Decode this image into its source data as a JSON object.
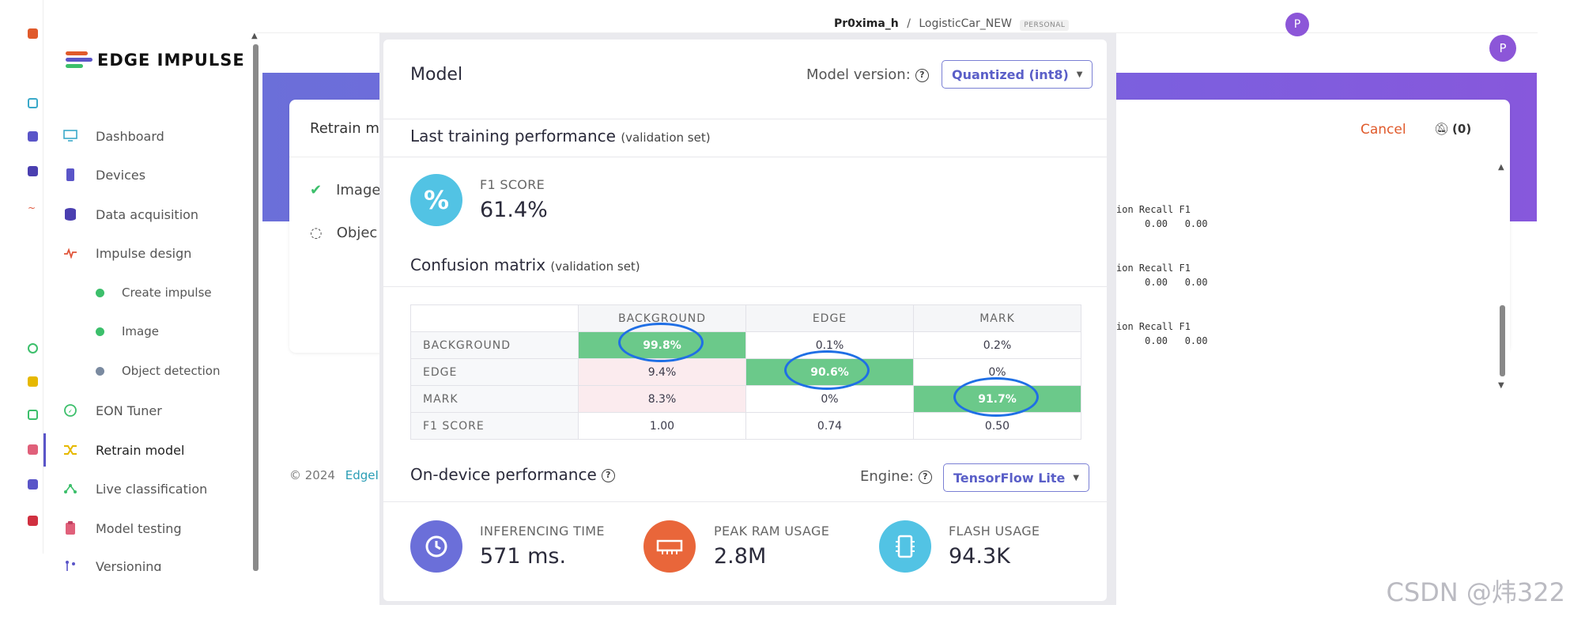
{
  "topbar": {
    "project_owner": "Pr0xima_h",
    "separator": "/",
    "project_name": "LogisticCar_NEW",
    "badge": "PERSONAL",
    "avatar_small": "P",
    "avatar_big": "P"
  },
  "sidebar": {
    "logo_text": "EDGE IMPULSE",
    "items": [
      {
        "label": "Dashboard",
        "icon": "monitor-icon",
        "color": "#3aa9c9"
      },
      {
        "label": "Devices",
        "icon": "chip-icon",
        "color": "#5a55c8"
      },
      {
        "label": "Data acquisition",
        "icon": "database-icon",
        "color": "#4a3fb0"
      },
      {
        "label": "Impulse design",
        "icon": "pulse-icon",
        "color": "#e0553a"
      },
      {
        "label": "Create impulse",
        "icon": "dot-icon",
        "color": "#3cbf6b"
      },
      {
        "label": "Image",
        "icon": "dot-icon",
        "color": "#3cbf6b"
      },
      {
        "label": "Object detection",
        "icon": "dot-icon",
        "color": "#7a8aa0"
      },
      {
        "label": "EON Tuner",
        "icon": "compass-icon",
        "color": "#3cbf6b"
      },
      {
        "label": "Retrain model",
        "icon": "shuffle-icon",
        "color": "#e6b800"
      },
      {
        "label": "Live classification",
        "icon": "network-icon",
        "color": "#3cbf6b"
      },
      {
        "label": "Model testing",
        "icon": "clipboard-icon",
        "color": "#e0607a"
      },
      {
        "label": "Versioning",
        "icon": "branch-icon",
        "color": "#5a55c8"
      }
    ]
  },
  "background_card": {
    "title_fragment": "Retrain m",
    "steps": [
      {
        "label": "Image",
        "state": "done"
      },
      {
        "label": "Objec",
        "state": "loading"
      }
    ],
    "cancel_label": "Cancel",
    "notifications_label": "(0)"
  },
  "console_lines": [
    "ion Recall F1",
    "     0.00   0.00",
    "ion Recall F1",
    "     0.00   0.00",
    "ion Recall F1",
    "     0.00   0.00"
  ],
  "footer": {
    "copyright": "© 2024",
    "link_fragment": "EdgeIm"
  },
  "modal": {
    "title": "Model",
    "model_version_label": "Model version:",
    "model_version_value": "Quantized (int8)",
    "last_training_title": "Last training performance",
    "last_training_note": "(validation set)",
    "f1_icon": "%",
    "f1_label": "F1 SCORE",
    "f1_value": "61.4%",
    "confusion_title": "Confusion matrix",
    "confusion_note": "(validation set)",
    "confusion_matrix": {
      "columns": [
        "BACKGROUND",
        "EDGE",
        "MARK"
      ],
      "rows": [
        {
          "label": "BACKGROUND",
          "cells": [
            "99.8%",
            "0.1%",
            "0.2%"
          ]
        },
        {
          "label": "EDGE",
          "cells": [
            "9.4%",
            "90.6%",
            "0%"
          ]
        },
        {
          "label": "MARK",
          "cells": [
            "8.3%",
            "0%",
            "91.7%"
          ]
        },
        {
          "label": "F1 SCORE",
          "cells": [
            "1.00",
            "0.74",
            "0.50"
          ]
        }
      ]
    },
    "ondevice_title": "On-device performance",
    "engine_label": "Engine:",
    "engine_value": "TensorFlow Lite",
    "metrics": [
      {
        "label": "INFERENCING TIME",
        "value": "571 ms.",
        "icon": "clock-icon",
        "color": "#6b6fd9"
      },
      {
        "label": "PEAK RAM USAGE",
        "value": "2.8M",
        "icon": "ram-icon",
        "color": "#e9663a"
      },
      {
        "label": "FLASH USAGE",
        "value": "94.3K",
        "icon": "flash-chip-icon",
        "color": "#52c3e4"
      }
    ]
  },
  "watermark": "CSDN @炜322",
  "colors": {
    "accent": "#5a5fc8",
    "highlight_green": "#6bc98a",
    "mistake_pink": "#fbebee",
    "ring_blue": "#1f6fe5",
    "cancel_orange": "#e05a2b"
  }
}
